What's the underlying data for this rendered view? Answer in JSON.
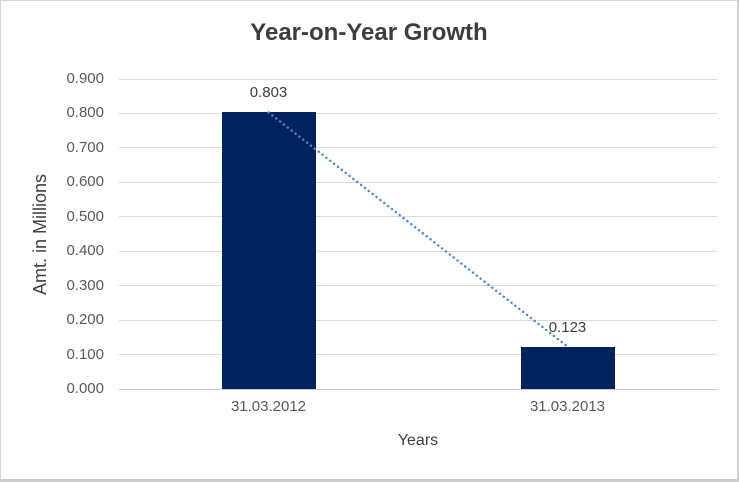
{
  "chart_data": {
    "type": "bar",
    "title": "Year-on-Year Growth",
    "categories": [
      "31.03.2012",
      "31.03.2013"
    ],
    "values": [
      0.803,
      0.123
    ],
    "data_labels": [
      "0.803",
      "0.123"
    ],
    "xlabel": "Years",
    "ylabel": "Amt. in Millions",
    "ylim": [
      0,
      0.9
    ],
    "ytick_step": 0.1,
    "yticks": [
      "0.900",
      "0.800",
      "0.700",
      "0.600",
      "0.500",
      "0.400",
      "0.300",
      "0.200",
      "0.100",
      "0.000"
    ],
    "grid": "horizontal",
    "legend_position": "none",
    "bar_color": "#02235e",
    "trendline": {
      "type": "linear",
      "style": "dotted",
      "color": "#4e87c9"
    }
  },
  "colors": {
    "background": "#ffffff",
    "border": "#d2d2d2",
    "gridline": "#d9d9d9",
    "axis_line": "#c9c9c9",
    "title_text": "#3d3d3d",
    "tick_text": "#595959",
    "axis_title_text": "#404040",
    "data_label_text": "#404040"
  }
}
